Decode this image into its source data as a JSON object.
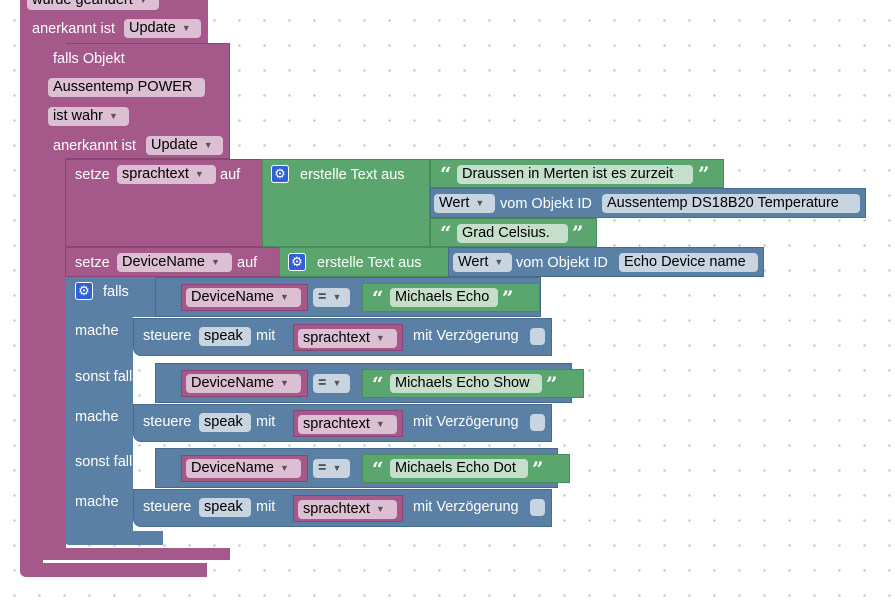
{
  "top": {
    "changed_field": "wurde geändert",
    "anerkannt_label": "anerkannt ist",
    "update_field": "Update"
  },
  "if_object": {
    "label": "falls Objekt",
    "object_field": "Aussentemp POWER",
    "ist_field": "ist wahr",
    "anerkannt_label": "anerkannt ist",
    "update_field": "Update"
  },
  "setze1": {
    "label": "setze",
    "var": "sprachtext",
    "auf": "auf",
    "create_text": "erstelle Text aus",
    "text1": "Draussen in Merten ist es zurzeit",
    "wert": "Wert",
    "vom_objekt": "vom Objekt ID",
    "object_id": "Aussentemp DS18B20  Temperature",
    "text2": "Grad Celsius."
  },
  "setze2": {
    "label": "setze",
    "var": "DeviceName",
    "auf": "auf",
    "create_text": "erstelle Text aus",
    "wert": "Wert",
    "vom_objekt": "vom Objekt ID",
    "object_id": "Echo Device name"
  },
  "ifblock": {
    "falls": "falls",
    "mache": "mache",
    "sonst_falls": "sonst falls",
    "eq": "=",
    "compare_var": "DeviceName",
    "cases": [
      {
        "value": "Michaels Echo"
      },
      {
        "value": "Michaels Echo Show"
      },
      {
        "value": "Michaels Echo Dot"
      }
    ],
    "action": {
      "steuere": "steuere",
      "speak": "speak",
      "mit": "mit",
      "var": "sprachtext",
      "delay": "mit Verzögerung"
    }
  },
  "icons": {
    "gear": "gear-icon",
    "dropdown": "chevron-down-icon",
    "quote_open": "quote-open-icon",
    "quote_close": "quote-close-icon"
  },
  "colors": {
    "trigger_block": "#a5588a",
    "text_block": "#5ba56e",
    "logic_block": "#5b80a5"
  }
}
